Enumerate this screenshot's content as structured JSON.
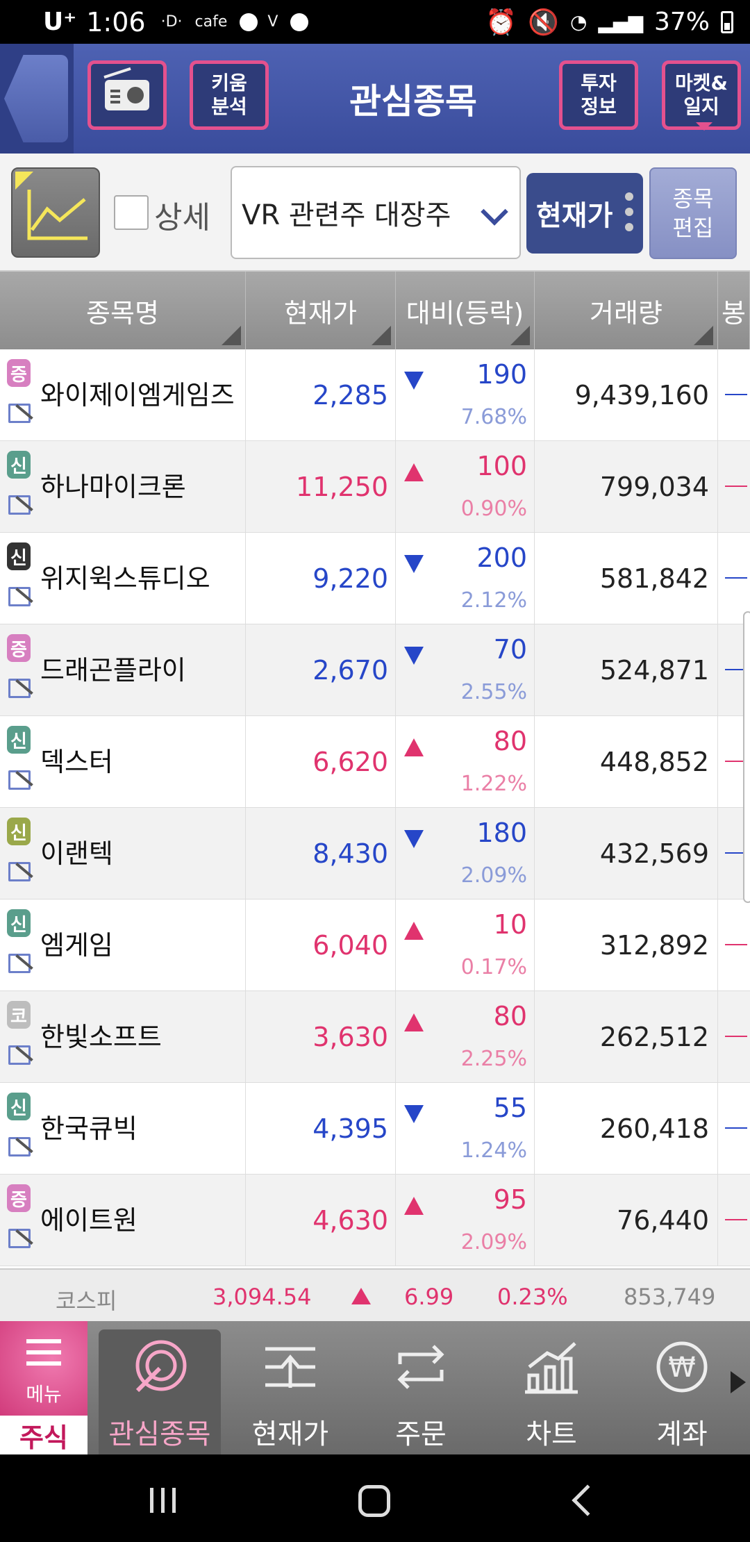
{
  "status_bar": {
    "carrier": "U⁺",
    "time": "1:06",
    "notif1": "·D·",
    "notif2": "cafe",
    "battery": "37%"
  },
  "header": {
    "title": "관심종목",
    "kiwoom_label": "키움\n분석",
    "invest_label": "투자\n정보",
    "market_label": "마켓&\n일지"
  },
  "toolbar": {
    "detail_label": "상세",
    "group_value": "VR 관련주 대장주",
    "price_label": "현재가",
    "edit_label": "종목\n편집"
  },
  "table": {
    "headers": [
      "종목명",
      "현재가",
      "대비(등락)",
      "거래량",
      "봉"
    ],
    "rows": [
      {
        "badge": "증",
        "badge_color": "#d77fc0",
        "name": "와이제이엠게임즈",
        "price": "2,285",
        "dir": "down",
        "change": "190",
        "pct": "7.68%",
        "volume": "9,439,160"
      },
      {
        "badge": "신",
        "badge_color": "#5a9e8c",
        "name": "하나마이크론",
        "price": "11,250",
        "dir": "up",
        "change": "100",
        "pct": "0.90%",
        "volume": "799,034"
      },
      {
        "badge": "신",
        "badge_color": "#333333",
        "name": "위지윅스튜디오",
        "price": "9,220",
        "dir": "down",
        "change": "200",
        "pct": "2.12%",
        "volume": "581,842"
      },
      {
        "badge": "증",
        "badge_color": "#d77fc0",
        "name": "드래곤플라이",
        "price": "2,670",
        "dir": "down",
        "change": "70",
        "pct": "2.55%",
        "volume": "524,871"
      },
      {
        "badge": "신",
        "badge_color": "#5a9e8c",
        "name": "덱스터",
        "price": "6,620",
        "dir": "up",
        "change": "80",
        "pct": "1.22%",
        "volume": "448,852"
      },
      {
        "badge": "신",
        "badge_color": "#9aa84a",
        "name": "이랜텍",
        "price": "8,430",
        "dir": "down",
        "change": "180",
        "pct": "2.09%",
        "volume": "432,569"
      },
      {
        "badge": "신",
        "badge_color": "#5a9e8c",
        "name": "엠게임",
        "price": "6,040",
        "dir": "up",
        "change": "10",
        "pct": "0.17%",
        "volume": "312,892"
      },
      {
        "badge": "코",
        "badge_color": "#bdbdbd",
        "name": "한빛소프트",
        "price": "3,630",
        "dir": "up",
        "change": "80",
        "pct": "2.25%",
        "volume": "262,512"
      },
      {
        "badge": "신",
        "badge_color": "#5a9e8c",
        "name": "한국큐빅",
        "price": "4,395",
        "dir": "down",
        "change": "55",
        "pct": "1.24%",
        "volume": "260,418"
      },
      {
        "badge": "증",
        "badge_color": "#d77fc0",
        "name": "에이트원",
        "price": "4,630",
        "dir": "up",
        "change": "95",
        "pct": "2.09%",
        "volume": "76,440"
      }
    ]
  },
  "index_bar": {
    "name": "코스피",
    "value": "3,094.54",
    "change": "6.99",
    "pct": "0.23%",
    "volume": "853,749"
  },
  "nav": {
    "menu_label": "메뉴",
    "stock_tab": "주식",
    "items": [
      "관심종목",
      "현재가",
      "주문",
      "차트",
      "계좌"
    ]
  },
  "colors": {
    "up": "#e0336e",
    "down": "#2646c8",
    "header": "#3a4c9c",
    "accent": "#e4518e"
  }
}
